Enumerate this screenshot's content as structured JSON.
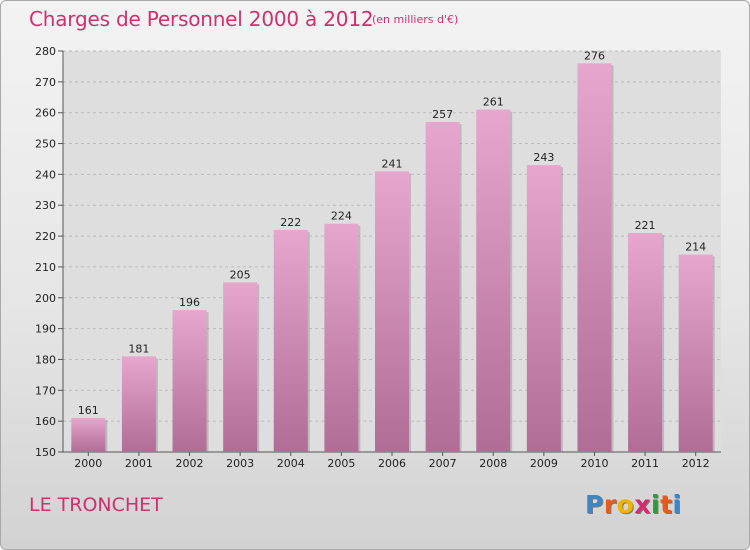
{
  "header": {
    "title": "Charges de Personnel 2000 à 2012",
    "subtitle": "(en milliers d'€)"
  },
  "footer": {
    "commune": "LE TRONCHET",
    "logo_letters": [
      "P",
      "r",
      "o",
      "x",
      "i",
      "t",
      "i"
    ]
  },
  "colors": {
    "title": "#d1306e",
    "bar_top": "#e6a6cd",
    "bar_bottom": "#b06d96",
    "logo": [
      "#3d86c6",
      "#e85a1b",
      "#f0b400",
      "#d32b6e",
      "#2e9a3a",
      "#e85a1b",
      "#3d86c6"
    ]
  },
  "chart_data": {
    "type": "bar",
    "categories": [
      "2000",
      "2001",
      "2002",
      "2003",
      "2004",
      "2005",
      "2006",
      "2007",
      "2008",
      "2009",
      "2010",
      "2011",
      "2012"
    ],
    "values": [
      161,
      181,
      196,
      205,
      222,
      224,
      241,
      257,
      261,
      243,
      276,
      221,
      214
    ],
    "ylim": [
      150,
      280
    ],
    "yticks": [
      150,
      160,
      170,
      180,
      190,
      200,
      210,
      220,
      230,
      240,
      250,
      260,
      270,
      280
    ],
    "grid": true,
    "legend": "none"
  }
}
